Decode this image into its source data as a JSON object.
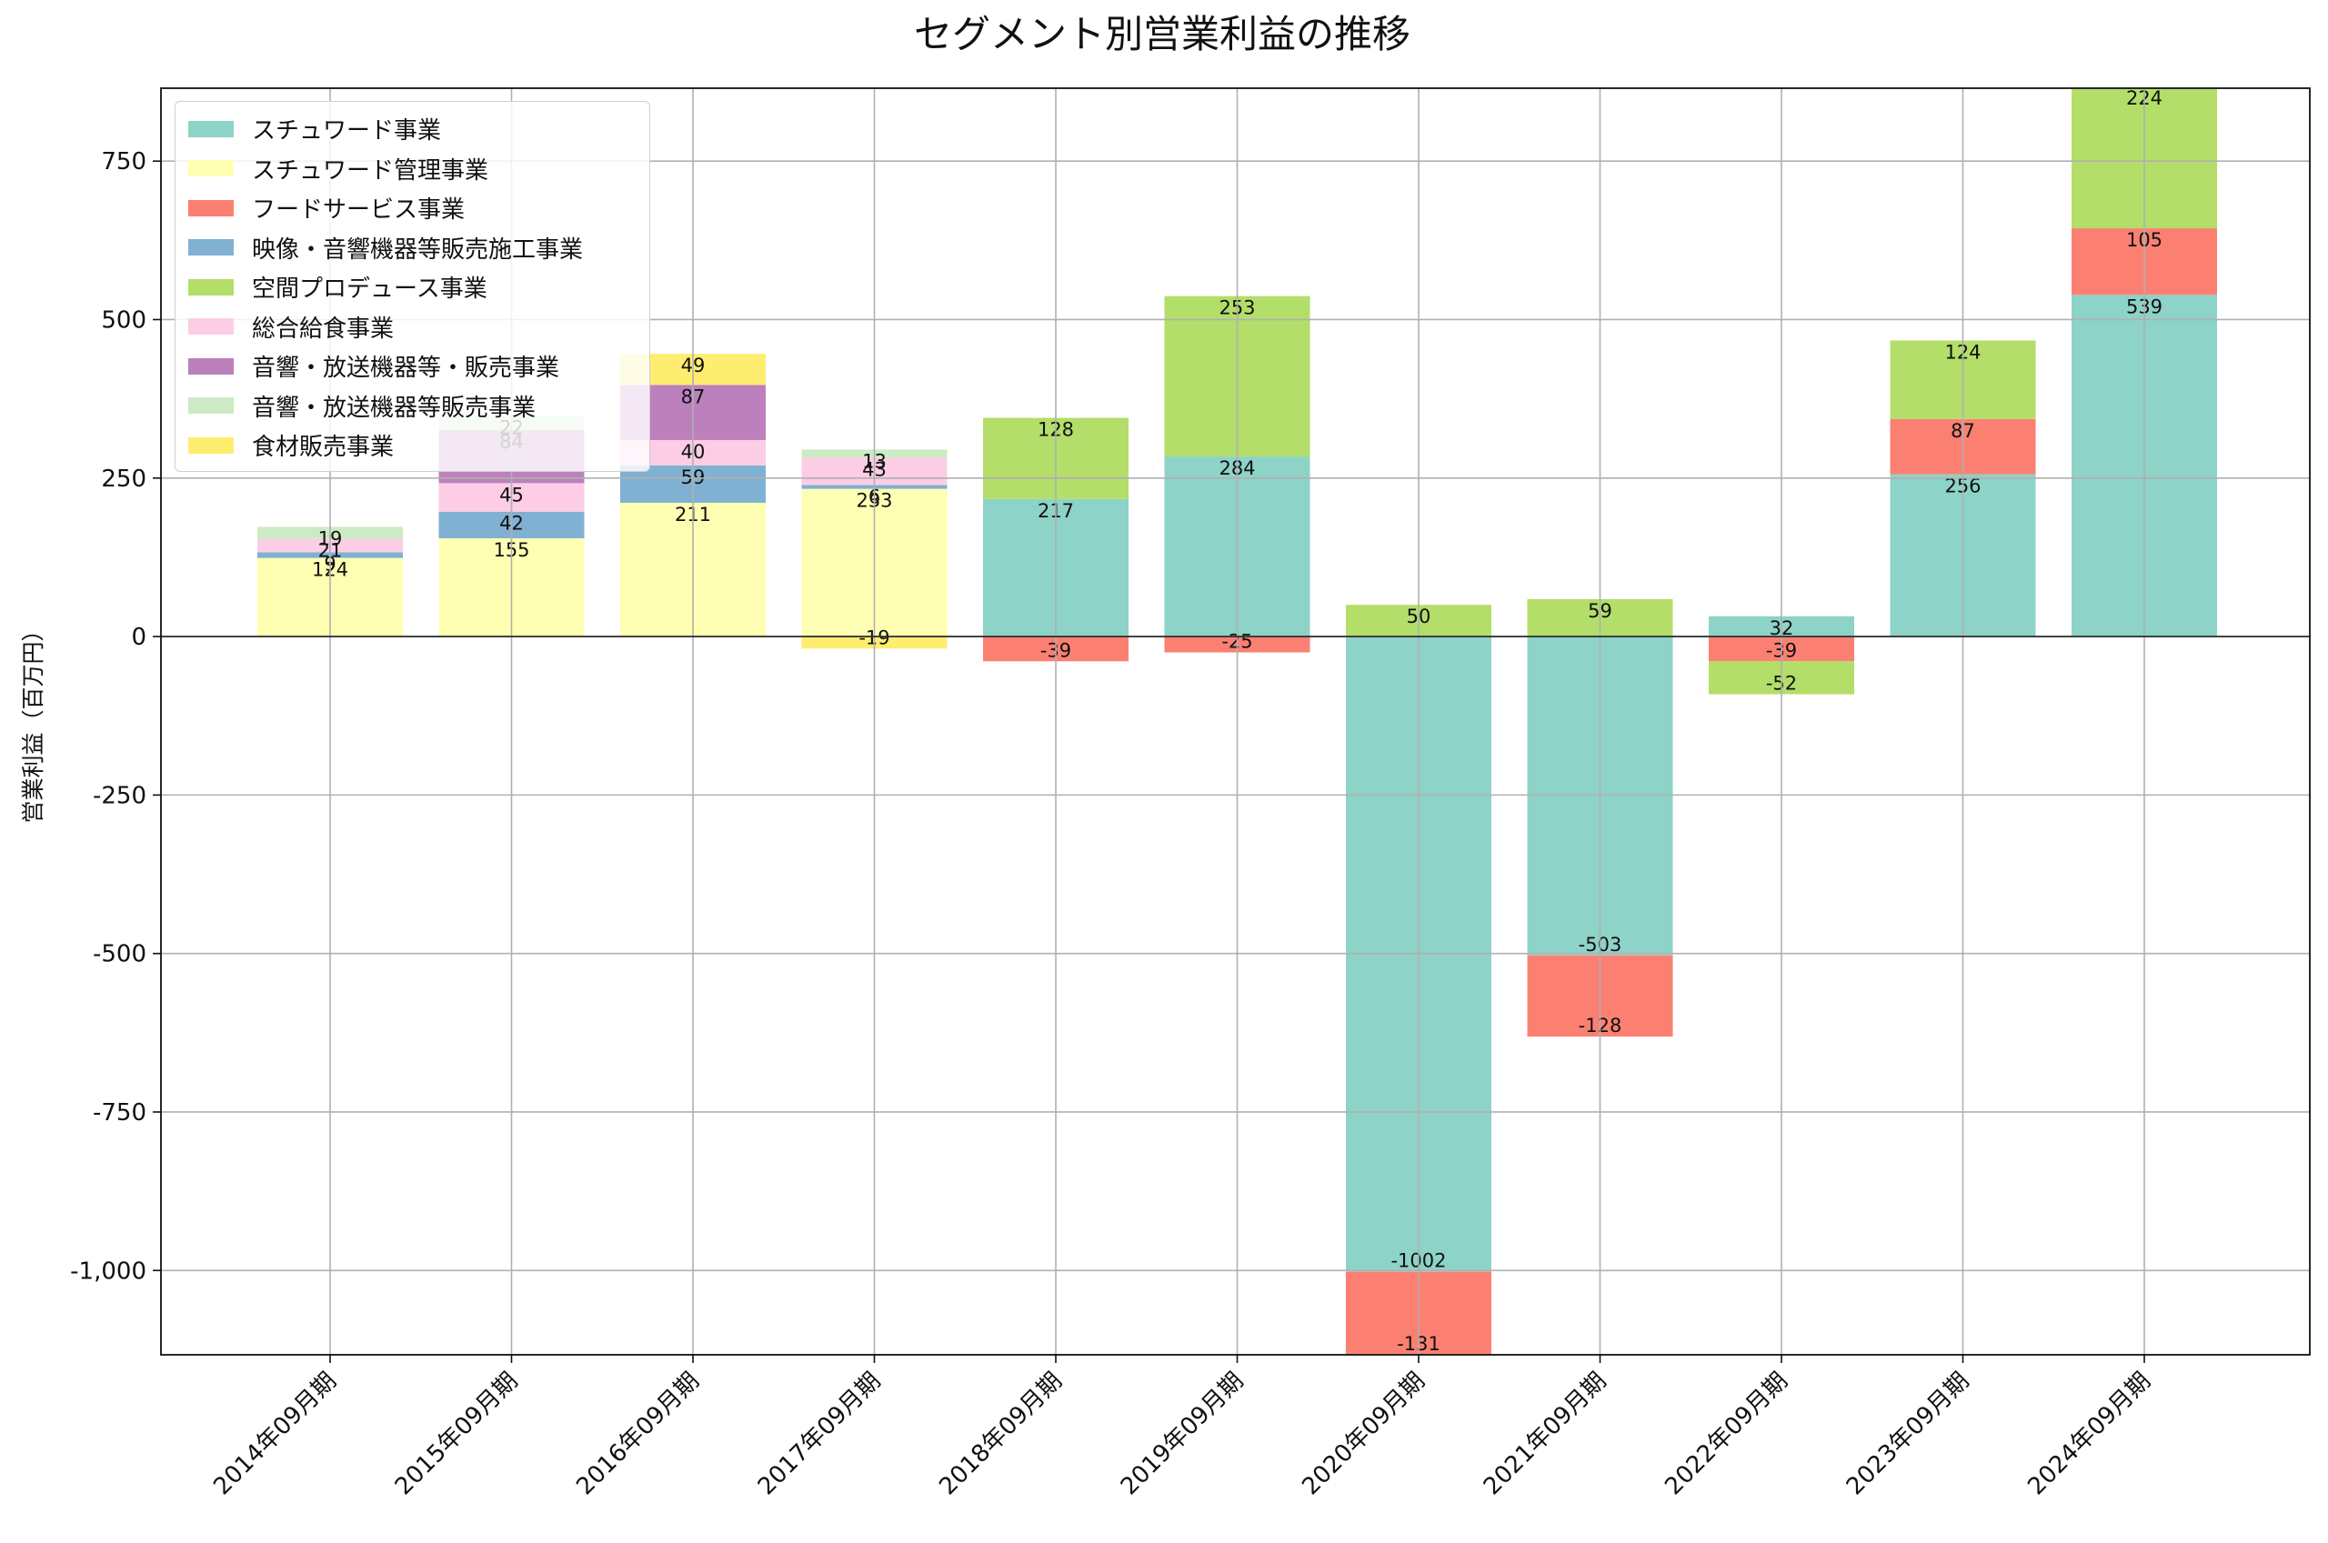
{
  "chart_data": {
    "type": "bar",
    "stacked": true,
    "title": "セグメント別営業利益の推移",
    "xlabel": "",
    "ylabel": "営業利益（百万円）",
    "ylim": [
      -1133,
      865
    ],
    "yticks": [
      -1000,
      -750,
      -500,
      -250,
      0,
      250,
      500,
      750
    ],
    "ytick_labels": [
      "-1,000",
      "-750",
      "-500",
      "-250",
      "0",
      "250",
      "500",
      "750"
    ],
    "grid": true,
    "legend_position": "upper-left",
    "categories": [
      "2014年09月期",
      "2015年09月期",
      "2016年09月期",
      "2017年09月期",
      "2018年09月期",
      "2019年09月期",
      "2020年09月期",
      "2021年09月期",
      "2022年09月期",
      "2023年09月期",
      "2024年09月期"
    ],
    "series": [
      {
        "name": "スチュワード事業",
        "color": "#8dd3c7",
        "values": [
          null,
          null,
          null,
          null,
          217,
          284,
          -1002,
          -503,
          32,
          256,
          539
        ]
      },
      {
        "name": "スチュワード管理事業",
        "color": "#ffffb3",
        "values": [
          124,
          155,
          211,
          233,
          null,
          null,
          null,
          null,
          null,
          null,
          null
        ]
      },
      {
        "name": "フードサービス事業",
        "color": "#fb8072",
        "values": [
          null,
          null,
          null,
          null,
          -39,
          -25,
          -131,
          -128,
          -39,
          87,
          105
        ]
      },
      {
        "name": "映像・音響機器等販売施工事業",
        "color": "#80b1d3",
        "values": [
          9,
          42,
          59,
          6,
          null,
          null,
          null,
          null,
          null,
          null,
          null
        ]
      },
      {
        "name": "空間プロデュース事業",
        "color": "#b3de69",
        "values": [
          null,
          null,
          null,
          null,
          128,
          253,
          50,
          59,
          -52,
          124,
          224
        ]
      },
      {
        "name": "総合給食事業",
        "color": "#fccde5",
        "values": [
          21,
          45,
          40,
          43,
          null,
          null,
          null,
          null,
          null,
          null,
          null
        ]
      },
      {
        "name": "音響・放送機器等・販売事業",
        "color": "#bc80bd",
        "values": [
          null,
          84,
          87,
          null,
          null,
          null,
          null,
          null,
          null,
          null,
          null
        ]
      },
      {
        "name": "音響・放送機器等販売事業",
        "color": "#ccebc5",
        "values": [
          19,
          22,
          null,
          13,
          null,
          null,
          null,
          null,
          null,
          null,
          null
        ]
      },
      {
        "name": "食材販売事業",
        "color": "#ffed6f",
        "values": [
          null,
          null,
          49,
          -19,
          null,
          null,
          null,
          null,
          null,
          null,
          null
        ]
      }
    ]
  }
}
